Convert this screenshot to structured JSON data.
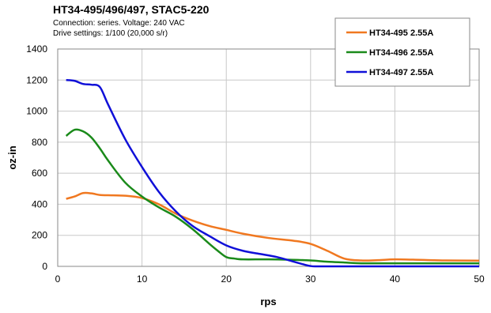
{
  "header": {
    "title": "HT34-495/496/497, STAC5-220",
    "subtitle1": "Connection: series. Voltage: 240 VAC",
    "subtitle2": "Drive settings: 1/100 (20,000 s/r)"
  },
  "chart_data": {
    "type": "line",
    "xlabel": "rps",
    "ylabel": "oz-in",
    "xlim": [
      0,
      50
    ],
    "ylim": [
      0,
      1400
    ],
    "xticks": [
      0,
      10,
      20,
      30,
      40,
      50
    ],
    "yticks": [
      0,
      200,
      400,
      600,
      800,
      1000,
      1200,
      1400
    ],
    "grid": true,
    "legend_position": "top-right",
    "series": [
      {
        "name": "HT34-495 2.55A",
        "color": "#f07820",
        "x": [
          1,
          2,
          3,
          4,
          5,
          6,
          8,
          10,
          12,
          14,
          16,
          18,
          20,
          22,
          25,
          28,
          30,
          32,
          34,
          36,
          38,
          40,
          43,
          46,
          50
        ],
        "y": [
          435,
          450,
          472,
          470,
          460,
          458,
          455,
          440,
          400,
          340,
          295,
          260,
          235,
          210,
          183,
          165,
          145,
          100,
          50,
          38,
          40,
          45,
          42,
          38,
          37
        ]
      },
      {
        "name": "HT34-496 2.55A",
        "color": "#1a8a1a",
        "x": [
          1,
          2,
          3,
          4,
          5,
          6,
          8,
          10,
          12,
          14,
          16,
          18,
          19,
          20,
          21,
          22,
          25,
          28,
          30,
          32,
          34,
          36,
          40,
          50
        ],
        "y": [
          840,
          880,
          870,
          830,
          760,
          680,
          540,
          450,
          380,
          320,
          240,
          145,
          100,
          60,
          50,
          45,
          45,
          42,
          38,
          30,
          25,
          20,
          20,
          20
        ]
      },
      {
        "name": "HT34-497 2.55A",
        "color": "#1010d8",
        "x": [
          1,
          2,
          3,
          4,
          5,
          6,
          8,
          10,
          12,
          14,
          16,
          18,
          20,
          22,
          24,
          26,
          28,
          29,
          30,
          31,
          35,
          40,
          50
        ],
        "y": [
          1200,
          1195,
          1175,
          1170,
          1155,
          1040,
          820,
          640,
          480,
          355,
          260,
          195,
          135,
          100,
          80,
          60,
          30,
          15,
          2,
          0,
          0,
          0,
          0
        ]
      }
    ]
  }
}
